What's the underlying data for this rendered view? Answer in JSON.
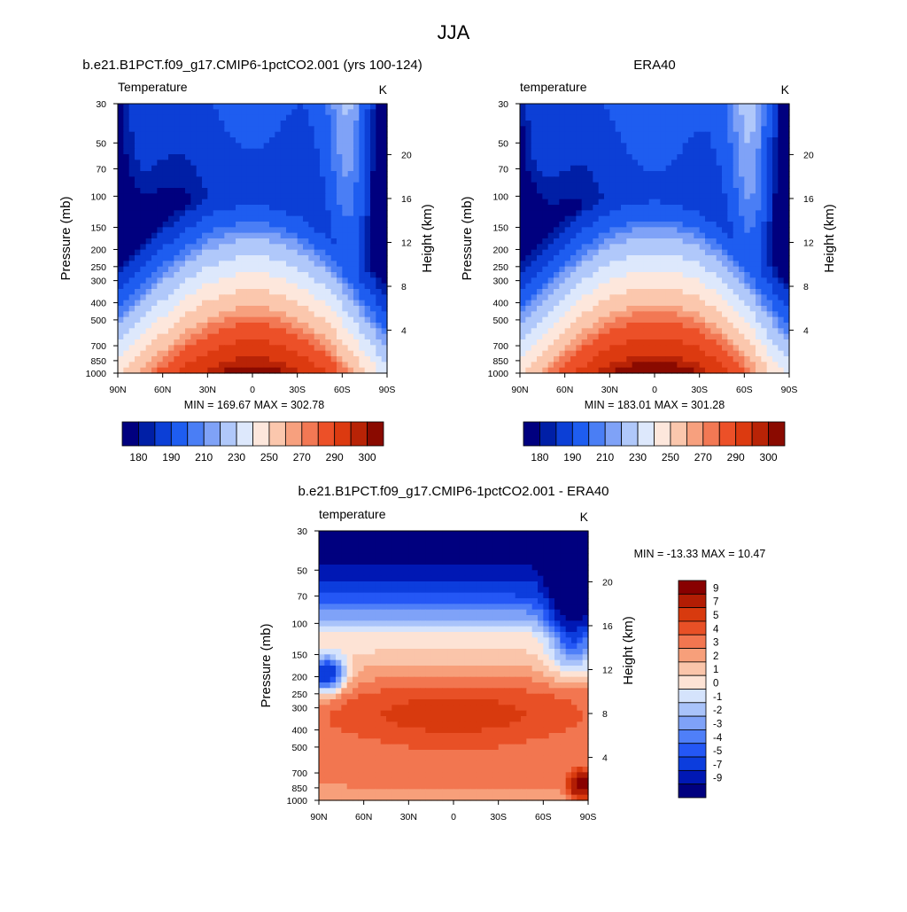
{
  "page": {
    "title": "JJA"
  },
  "colors": {
    "temp_palette": [
      "#00007f",
      "#001fa6",
      "#0c3fd6",
      "#1e5df0",
      "#4a7ef5",
      "#7fa2f7",
      "#b0c8fa",
      "#dde8fc",
      "#fde7dc",
      "#fbc7ad",
      "#f7a07e",
      "#f27854",
      "#ec5028",
      "#dc3a10",
      "#b82306",
      "#8a0a00"
    ],
    "diff_palette": [
      "#00007f",
      "#0018b4",
      "#0c3ddd",
      "#2457f5",
      "#4f7ff8",
      "#7fa2f8",
      "#a9c3fa",
      "#d5e3fc",
      "#fde3d5",
      "#fac5aa",
      "#f79f7a",
      "#f27650",
      "#e85026",
      "#d83a0e",
      "#b21d04",
      "#880000"
    ]
  },
  "chart_data": [
    {
      "id": "model",
      "type": "heatmap",
      "title": "b.e21.B1PCT.f09_g17.CMIP6-1pctCO2.001 (yrs 100-124)",
      "left_label": "Temperature",
      "right_label": "K",
      "xlabel": "",
      "ylabel": "Pressure (mb)",
      "ylabel_right": "Height (km)",
      "x_ticks": [
        "90N",
        "60N",
        "30N",
        "0",
        "30S",
        "60S",
        "90S"
      ],
      "y_ticks": [
        30,
        50,
        70,
        100,
        150,
        200,
        250,
        300,
        400,
        500,
        700,
        850,
        1000
      ],
      "y2_ticks": [
        20,
        16,
        12,
        8,
        4
      ],
      "stats": "MIN = 169.67  MAX = 302.78",
      "min": 169.67,
      "max": 302.78,
      "colorbar_labels": [
        "180",
        "190",
        "210",
        "230",
        "250",
        "270",
        "290",
        "300"
      ]
    },
    {
      "id": "obs",
      "type": "heatmap",
      "title": "ERA40",
      "left_label": "temperature",
      "right_label": "K",
      "xlabel": "",
      "ylabel": "Pressure (mb)",
      "ylabel_right": "Height (km)",
      "x_ticks": [
        "90N",
        "60N",
        "30N",
        "0",
        "30S",
        "60S",
        "90S"
      ],
      "y_ticks": [
        30,
        50,
        70,
        100,
        150,
        200,
        250,
        300,
        400,
        500,
        700,
        850,
        1000
      ],
      "y2_ticks": [
        20,
        16,
        12,
        8,
        4
      ],
      "stats": "MIN = 183.01  MAX = 301.28",
      "min": 183.01,
      "max": 301.28,
      "colorbar_labels": [
        "180",
        "190",
        "210",
        "230",
        "250",
        "270",
        "290",
        "300"
      ]
    },
    {
      "id": "diff",
      "type": "heatmap",
      "title": "b.e21.B1PCT.f09_g17.CMIP6-1pctCO2.001 - ERA40",
      "left_label": "temperature",
      "right_label": "K",
      "xlabel": "",
      "ylabel": "Pressure (mb)",
      "ylabel_right": "Height (km)",
      "x_ticks": [
        "90N",
        "60N",
        "30N",
        "0",
        "30S",
        "60S",
        "90S"
      ],
      "y_ticks": [
        30,
        50,
        70,
        100,
        150,
        200,
        250,
        300,
        400,
        500,
        700,
        850,
        1000
      ],
      "y2_ticks": [
        20,
        16,
        12,
        8,
        4
      ],
      "stats": "MIN = -13.33  MAX =  10.47",
      "min": -13.33,
      "max": 10.47,
      "colorbar_labels": [
        "9",
        "7",
        "5",
        "4",
        "3",
        "2",
        "1",
        "0",
        "-1",
        "-2",
        "-3",
        "-4",
        "-5",
        "-7",
        "-9"
      ]
    }
  ]
}
